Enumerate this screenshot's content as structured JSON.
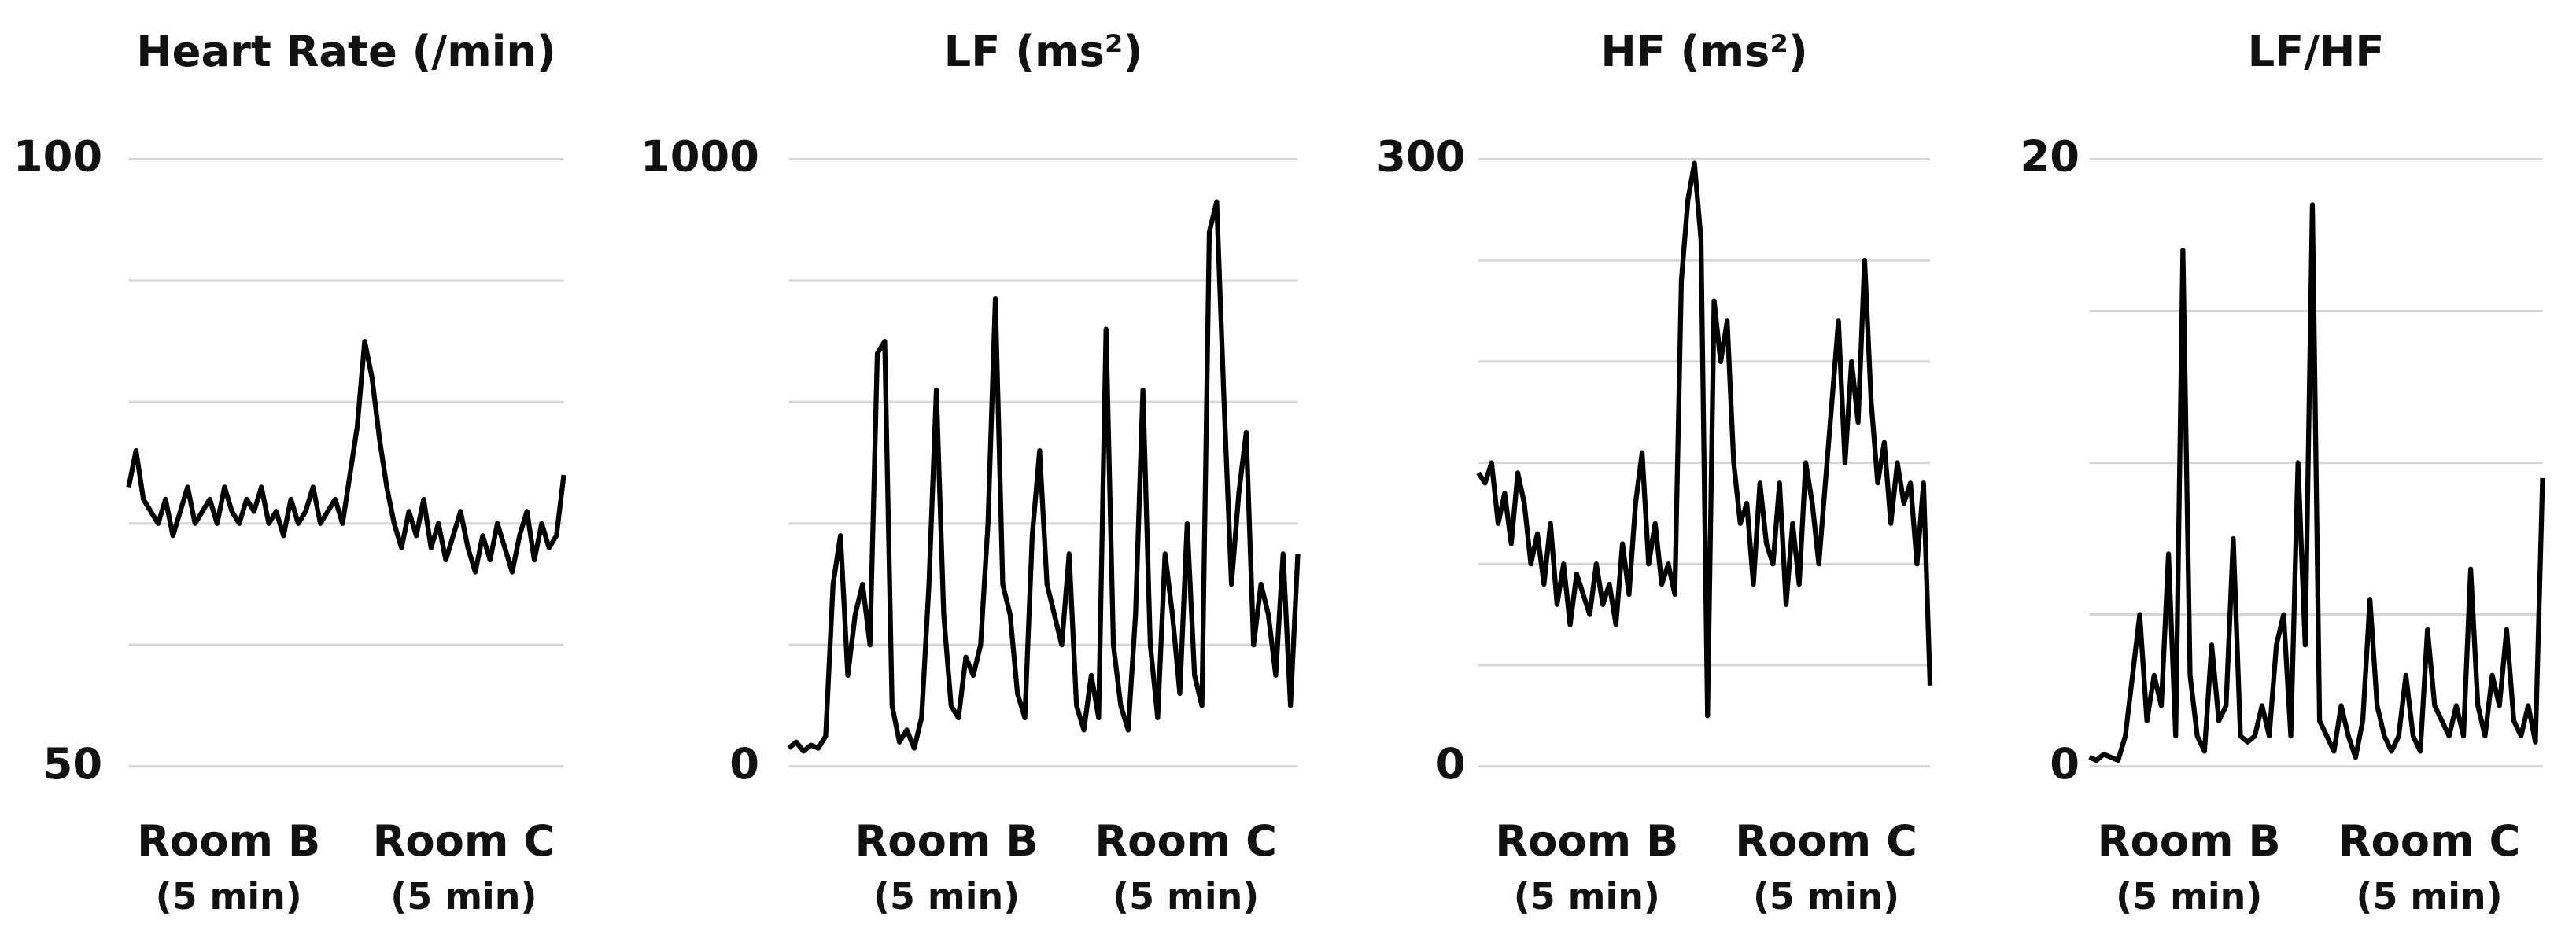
{
  "chart_data": [
    {
      "type": "line",
      "title": "Heart Rate (/min)",
      "ylim": [
        50,
        100
      ],
      "yticks": [
        50,
        100
      ],
      "ygrid": [
        60,
        70,
        80,
        90
      ],
      "segments": [
        {
          "room": "Room B",
          "duration": "(5 min)"
        },
        {
          "room": "Room C",
          "duration": "(5 min)"
        }
      ],
      "color": "#000000",
      "values": [
        73,
        76,
        72,
        71,
        70,
        72,
        69,
        71,
        73,
        70,
        71,
        72,
        70,
        73,
        71,
        70,
        72,
        71,
        73,
        70,
        71,
        69,
        72,
        70,
        71,
        73,
        70,
        71,
        72,
        70,
        74,
        78,
        85,
        82,
        77,
        73,
        70,
        68,
        71,
        69,
        72,
        68,
        70,
        67,
        69,
        71,
        68,
        66,
        69,
        67,
        70,
        68,
        66,
        69,
        71,
        67,
        70,
        68,
        69,
        74
      ]
    },
    {
      "type": "line",
      "title": "LF (ms²)",
      "ylim": [
        0,
        1000
      ],
      "yticks": [
        0,
        1000
      ],
      "ygrid": [
        200,
        400,
        600,
        800
      ],
      "segments": [
        {
          "room": "Room B",
          "duration": "(5 min)"
        },
        {
          "room": "Room C",
          "duration": "(5 min)"
        }
      ],
      "color": "#000000",
      "values": [
        30,
        40,
        25,
        35,
        30,
        50,
        300,
        380,
        150,
        250,
        300,
        200,
        680,
        700,
        100,
        40,
        60,
        30,
        80,
        300,
        620,
        250,
        100,
        80,
        180,
        150,
        200,
        400,
        770,
        300,
        250,
        120,
        80,
        380,
        520,
        300,
        250,
        200,
        350,
        100,
        60,
        150,
        80,
        720,
        200,
        100,
        60,
        250,
        620,
        200,
        80,
        350,
        250,
        120,
        400,
        150,
        100,
        880,
        930,
        600,
        300,
        450,
        550,
        200,
        300,
        250,
        150,
        350,
        100,
        350
      ]
    },
    {
      "type": "line",
      "title": "HF (ms²)",
      "ylim": [
        0,
        300
      ],
      "yticks": [
        0,
        300
      ],
      "ygrid": [
        50,
        100,
        150,
        200,
        250
      ],
      "segments": [
        {
          "room": "Room B",
          "duration": "(5 min)"
        },
        {
          "room": "Room C",
          "duration": "(5 min)"
        }
      ],
      "color": "#000000",
      "values": [
        145,
        140,
        150,
        120,
        135,
        110,
        145,
        130,
        100,
        115,
        90,
        120,
        80,
        100,
        70,
        95,
        85,
        75,
        100,
        80,
        90,
        70,
        110,
        85,
        130,
        155,
        100,
        120,
        90,
        100,
        85,
        240,
        280,
        298,
        260,
        25,
        230,
        200,
        220,
        150,
        120,
        130,
        90,
        140,
        110,
        100,
        140,
        80,
        120,
        90,
        150,
        130,
        100,
        140,
        180,
        220,
        150,
        200,
        170,
        250,
        180,
        140,
        160,
        120,
        150,
        130,
        140,
        100,
        140,
        40
      ]
    },
    {
      "type": "line",
      "title": "LF/HF",
      "ylim": [
        0,
        20
      ],
      "yticks": [
        0,
        20
      ],
      "ygrid": [
        5,
        10,
        15
      ],
      "segments": [
        {
          "room": "Room B",
          "duration": "(5 min)"
        },
        {
          "room": "Room C",
          "duration": "(5 min)"
        }
      ],
      "color": "#000000",
      "values": [
        0.3,
        0.2,
        0.4,
        0.3,
        0.2,
        1,
        3,
        5,
        1.5,
        3,
        2,
        7,
        1,
        17,
        3,
        1,
        0.5,
        4,
        1.5,
        2,
        7.5,
        1,
        0.8,
        1,
        2,
        1,
        4,
        5,
        1,
        10,
        4,
        18.5,
        1.5,
        1,
        0.5,
        2,
        1,
        0.3,
        1.5,
        5.5,
        2,
        1,
        0.5,
        1,
        3,
        1,
        0.5,
        4.5,
        2,
        1.5,
        1,
        2,
        1,
        6.5,
        2,
        1,
        3,
        2,
        4.5,
        1.5,
        1,
        2,
        0.8,
        9.5
      ]
    }
  ]
}
